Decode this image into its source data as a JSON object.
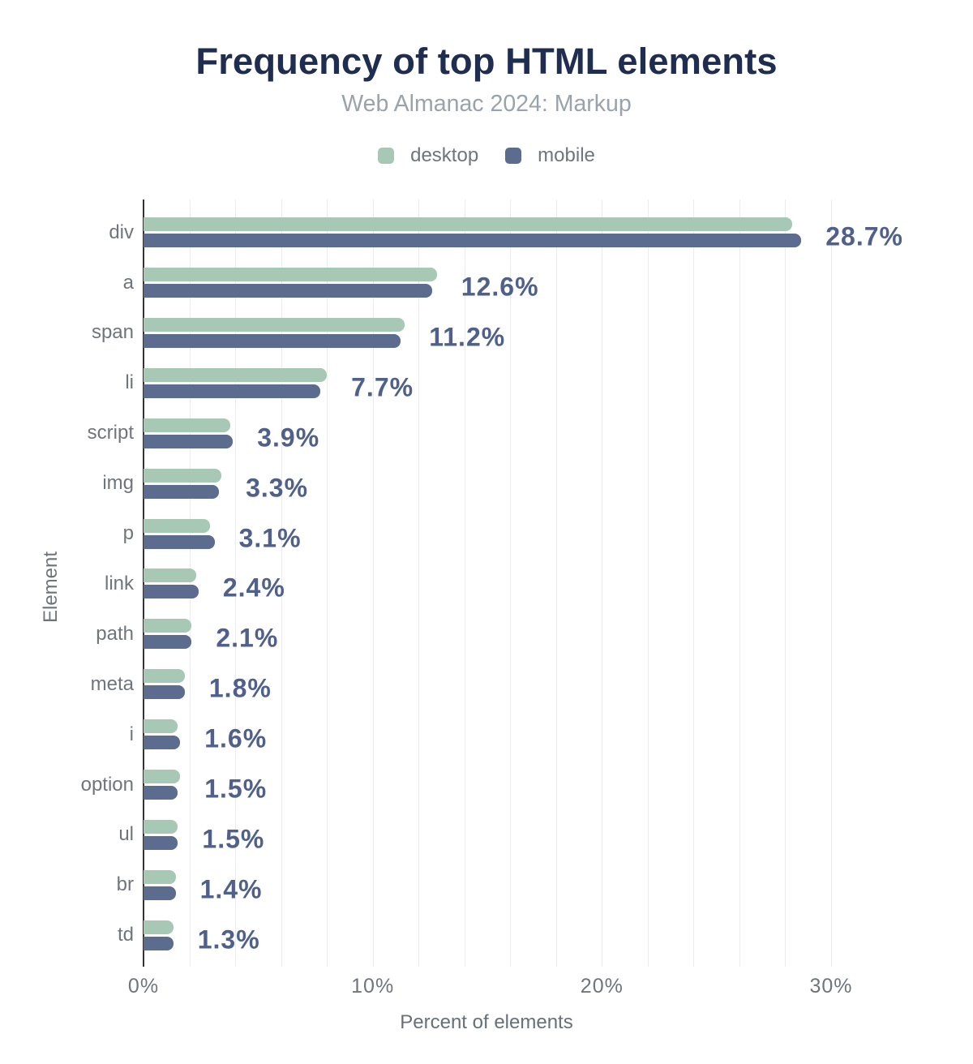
{
  "chart_data": {
    "type": "bar",
    "orientation": "horizontal",
    "title": "Frequency of top HTML elements",
    "subtitle": "Web Almanac 2024: Markup",
    "xlabel": "Percent of elements",
    "ylabel": "Element",
    "categories": [
      "div",
      "a",
      "span",
      "li",
      "script",
      "img",
      "p",
      "link",
      "path",
      "meta",
      "i",
      "option",
      "ul",
      "br",
      "td"
    ],
    "series": [
      {
        "name": "desktop",
        "color": "#a7c8b4",
        "values": [
          28.3,
          12.8,
          11.4,
          8.0,
          3.8,
          3.4,
          2.9,
          2.3,
          2.1,
          1.8,
          1.5,
          1.6,
          1.5,
          1.4,
          1.3
        ]
      },
      {
        "name": "mobile",
        "color": "#5b6c8e",
        "values": [
          28.7,
          12.6,
          11.2,
          7.7,
          3.9,
          3.3,
          3.1,
          2.4,
          2.1,
          1.8,
          1.6,
          1.5,
          1.5,
          1.4,
          1.3
        ]
      }
    ],
    "data_labels": [
      "28.7%",
      "12.6%",
      "11.2%",
      "7.7%",
      "3.9%",
      "3.3%",
      "3.1%",
      "2.4%",
      "2.1%",
      "1.8%",
      "1.6%",
      "1.5%",
      "1.5%",
      "1.4%",
      "1.3%"
    ],
    "data_labels_series": "mobile",
    "x_ticks": [
      "0%",
      "10%",
      "20%",
      "30%"
    ],
    "xlim": [
      0,
      31
    ],
    "grid": {
      "interval_percent": 2,
      "max_percent": 30,
      "color": "#ececef"
    },
    "legend_position": "top"
  }
}
